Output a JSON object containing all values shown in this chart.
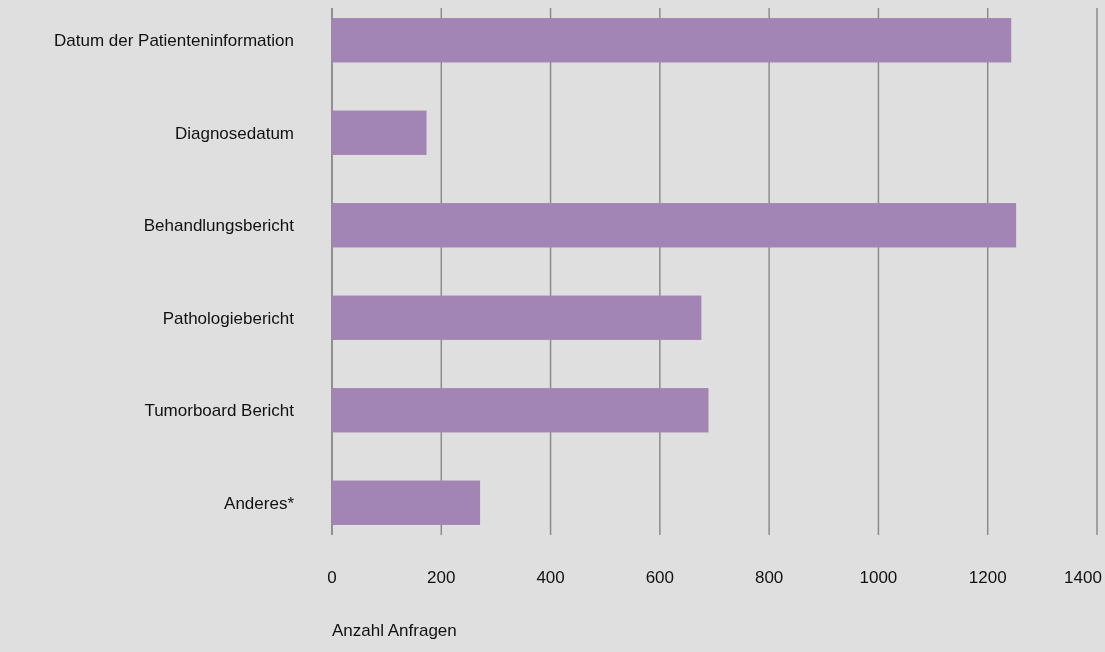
{
  "chart_data": {
    "type": "bar",
    "orientation": "horizontal",
    "xlabel": "Anzahl Anfragen",
    "categories": [
      "Datum der Patienteninformation",
      "Diagnosedatum",
      "Behandlungsbericht",
      "Pathologiebericht",
      "Tumorboard Bericht",
      "Anderes*"
    ],
    "values": [
      1243,
      173,
      1252,
      676,
      689,
      271
    ],
    "color": "#a385b5",
    "xlim": [
      0,
      1400
    ],
    "xticks": [
      0,
      200,
      400,
      600,
      800,
      1000,
      1200,
      1400
    ],
    "grid": "x"
  }
}
